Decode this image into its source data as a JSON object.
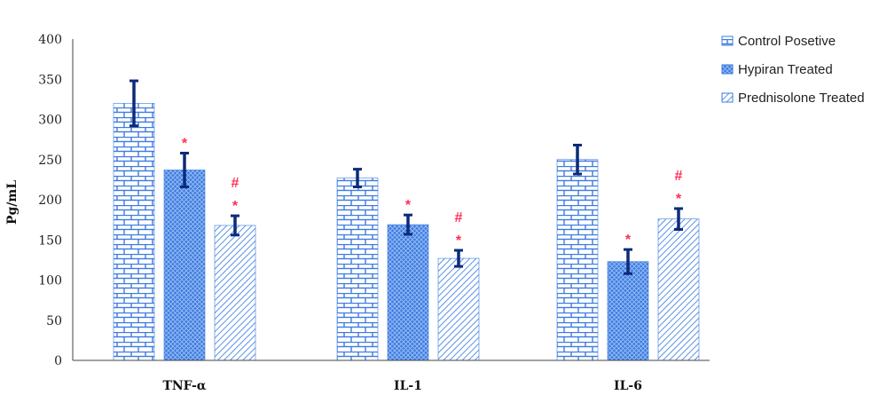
{
  "chart_data": {
    "type": "bar",
    "title": "",
    "xlabel": "",
    "ylabel": "Pg/mL",
    "ylim": [
      0,
      400
    ],
    "yticks": [
      0,
      50,
      100,
      150,
      200,
      250,
      300,
      350,
      400
    ],
    "categories": [
      "TNF-α",
      "IL-1",
      "IL-6"
    ],
    "series": [
      {
        "name": "Control Posetive",
        "pattern": "brick",
        "color": "#3d7be0",
        "values": [
          320,
          227,
          250
        ],
        "errors": [
          28,
          11,
          18
        ],
        "marks": [
          [],
          [],
          []
        ]
      },
      {
        "name": "Hypiran Treated",
        "pattern": "crosshatch",
        "color": "#3d7be0",
        "values": [
          237,
          169,
          123
        ],
        "errors": [
          21,
          12,
          15
        ],
        "marks": [
          [
            "*"
          ],
          [
            "*"
          ],
          [
            "*"
          ]
        ]
      },
      {
        "name": "Prednisolone Treated",
        "pattern": "diagonal",
        "color": "#3d7be0",
        "values": [
          168,
          127,
          176
        ],
        "errors": [
          12,
          10,
          13
        ],
        "marks": [
          [
            "*",
            "#"
          ],
          [
            "*",
            "#"
          ],
          [
            "*",
            "#"
          ]
        ]
      }
    ],
    "error_bar_color": "#0d2a7a",
    "mark_color": "#ff2d55",
    "grid": false,
    "legend_position": "top-right"
  }
}
